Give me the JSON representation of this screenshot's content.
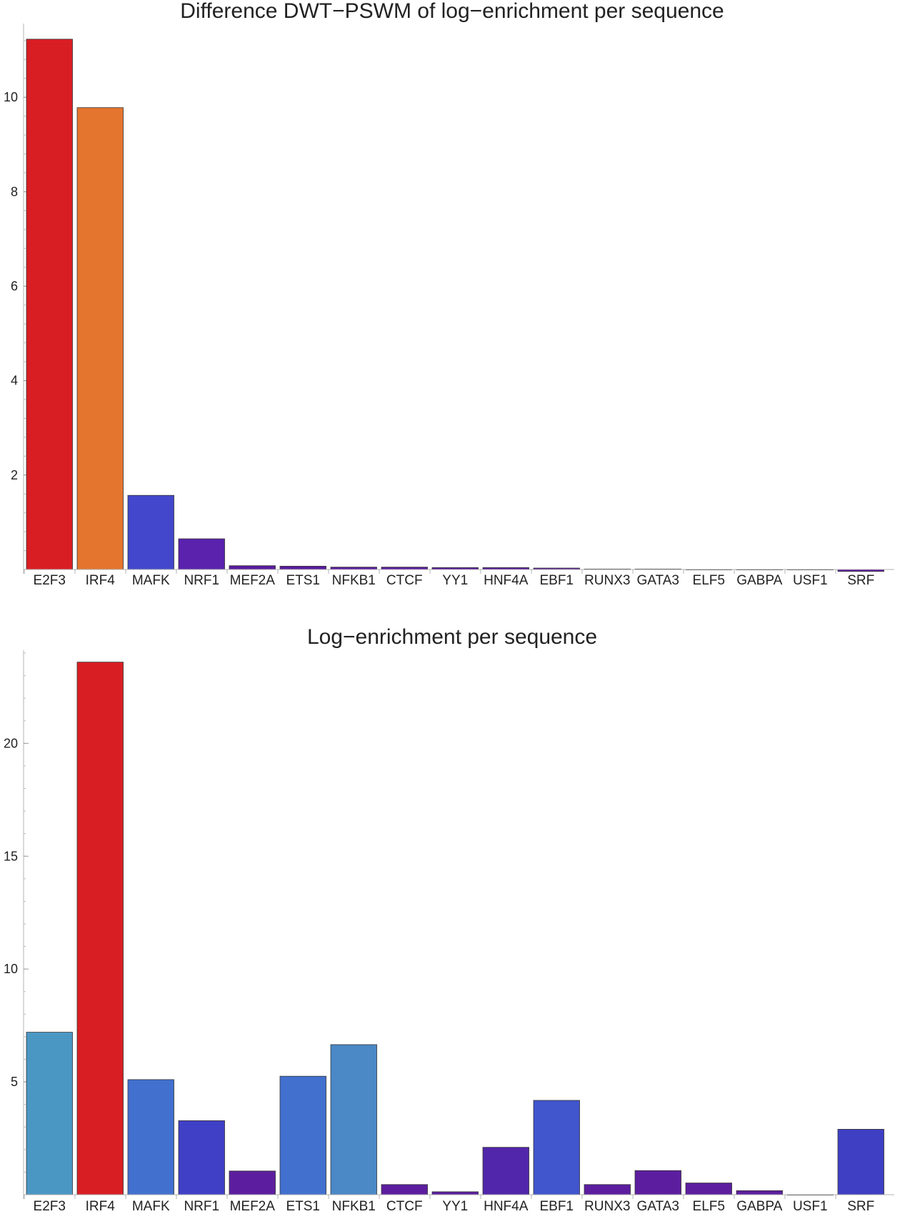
{
  "chart_data": [
    {
      "type": "bar",
      "title": "Difference DWT−PSWM of log−enrichment per sequence",
      "xlabel": "",
      "ylabel": "",
      "categories": [
        "E2F3",
        "IRF4",
        "MAFK",
        "NRF1",
        "MEF2A",
        "ETS1",
        "NFKB1",
        "CTCF",
        "YY1",
        "HNF4A",
        "EBF1",
        "RUNX3",
        "GATA3",
        "ELF5",
        "GABPA",
        "USF1",
        "SRF"
      ],
      "values": [
        11.23,
        9.78,
        1.57,
        0.65,
        0.08,
        0.07,
        0.05,
        0.05,
        0.04,
        0.04,
        0.03,
        0.01,
        0.01,
        0.0,
        0.0,
        0.0,
        -0.04
      ],
      "colors": [
        "#d91e23",
        "#e4752e",
        "#4247cc",
        "#5a22ad",
        "#5a1a9e",
        "#5a1a9e",
        "#5a1a9e",
        "#5a1a9e",
        "#5a1a9e",
        "#5a1a9e",
        "#5a1a9e",
        "#5a1a9e",
        "#5a1a9e",
        "#5a1a9e",
        "#5a1a9e",
        "#5a1a9e",
        "#5a1a9e"
      ],
      "yticks": [
        2,
        4,
        6,
        8,
        10
      ],
      "ylim": [
        0,
        11.5
      ],
      "grid": false
    },
    {
      "type": "bar",
      "title": "Log−enrichment per sequence",
      "xlabel": "",
      "ylabel": "",
      "categories": [
        "E2F3",
        "IRF4",
        "MAFK",
        "NRF1",
        "MEF2A",
        "ETS1",
        "NFKB1",
        "CTCF",
        "YY1",
        "HNF4A",
        "EBF1",
        "RUNX3",
        "GATA3",
        "ELF5",
        "GABPA",
        "USF1",
        "SRF"
      ],
      "values": [
        7.2,
        23.6,
        5.1,
        3.28,
        1.05,
        5.25,
        6.65,
        0.45,
        0.13,
        2.1,
        4.18,
        0.45,
        1.07,
        0.52,
        0.18,
        0.0,
        2.9
      ],
      "colors": [
        "#4b97c4",
        "#d91e23",
        "#4270cf",
        "#4040c6",
        "#5c1e9e",
        "#4270cf",
        "#4a88c6",
        "#5c1e9e",
        "#5c1e9e",
        "#5126aa",
        "#4155cd",
        "#5c1e9e",
        "#5c1e9e",
        "#5c1e9e",
        "#5c1e9e",
        "#5c1e9e",
        "#3f3fc4"
      ],
      "yticks": [
        5,
        10,
        15,
        20
      ],
      "ylim": [
        0,
        24
      ],
      "grid": false
    }
  ]
}
